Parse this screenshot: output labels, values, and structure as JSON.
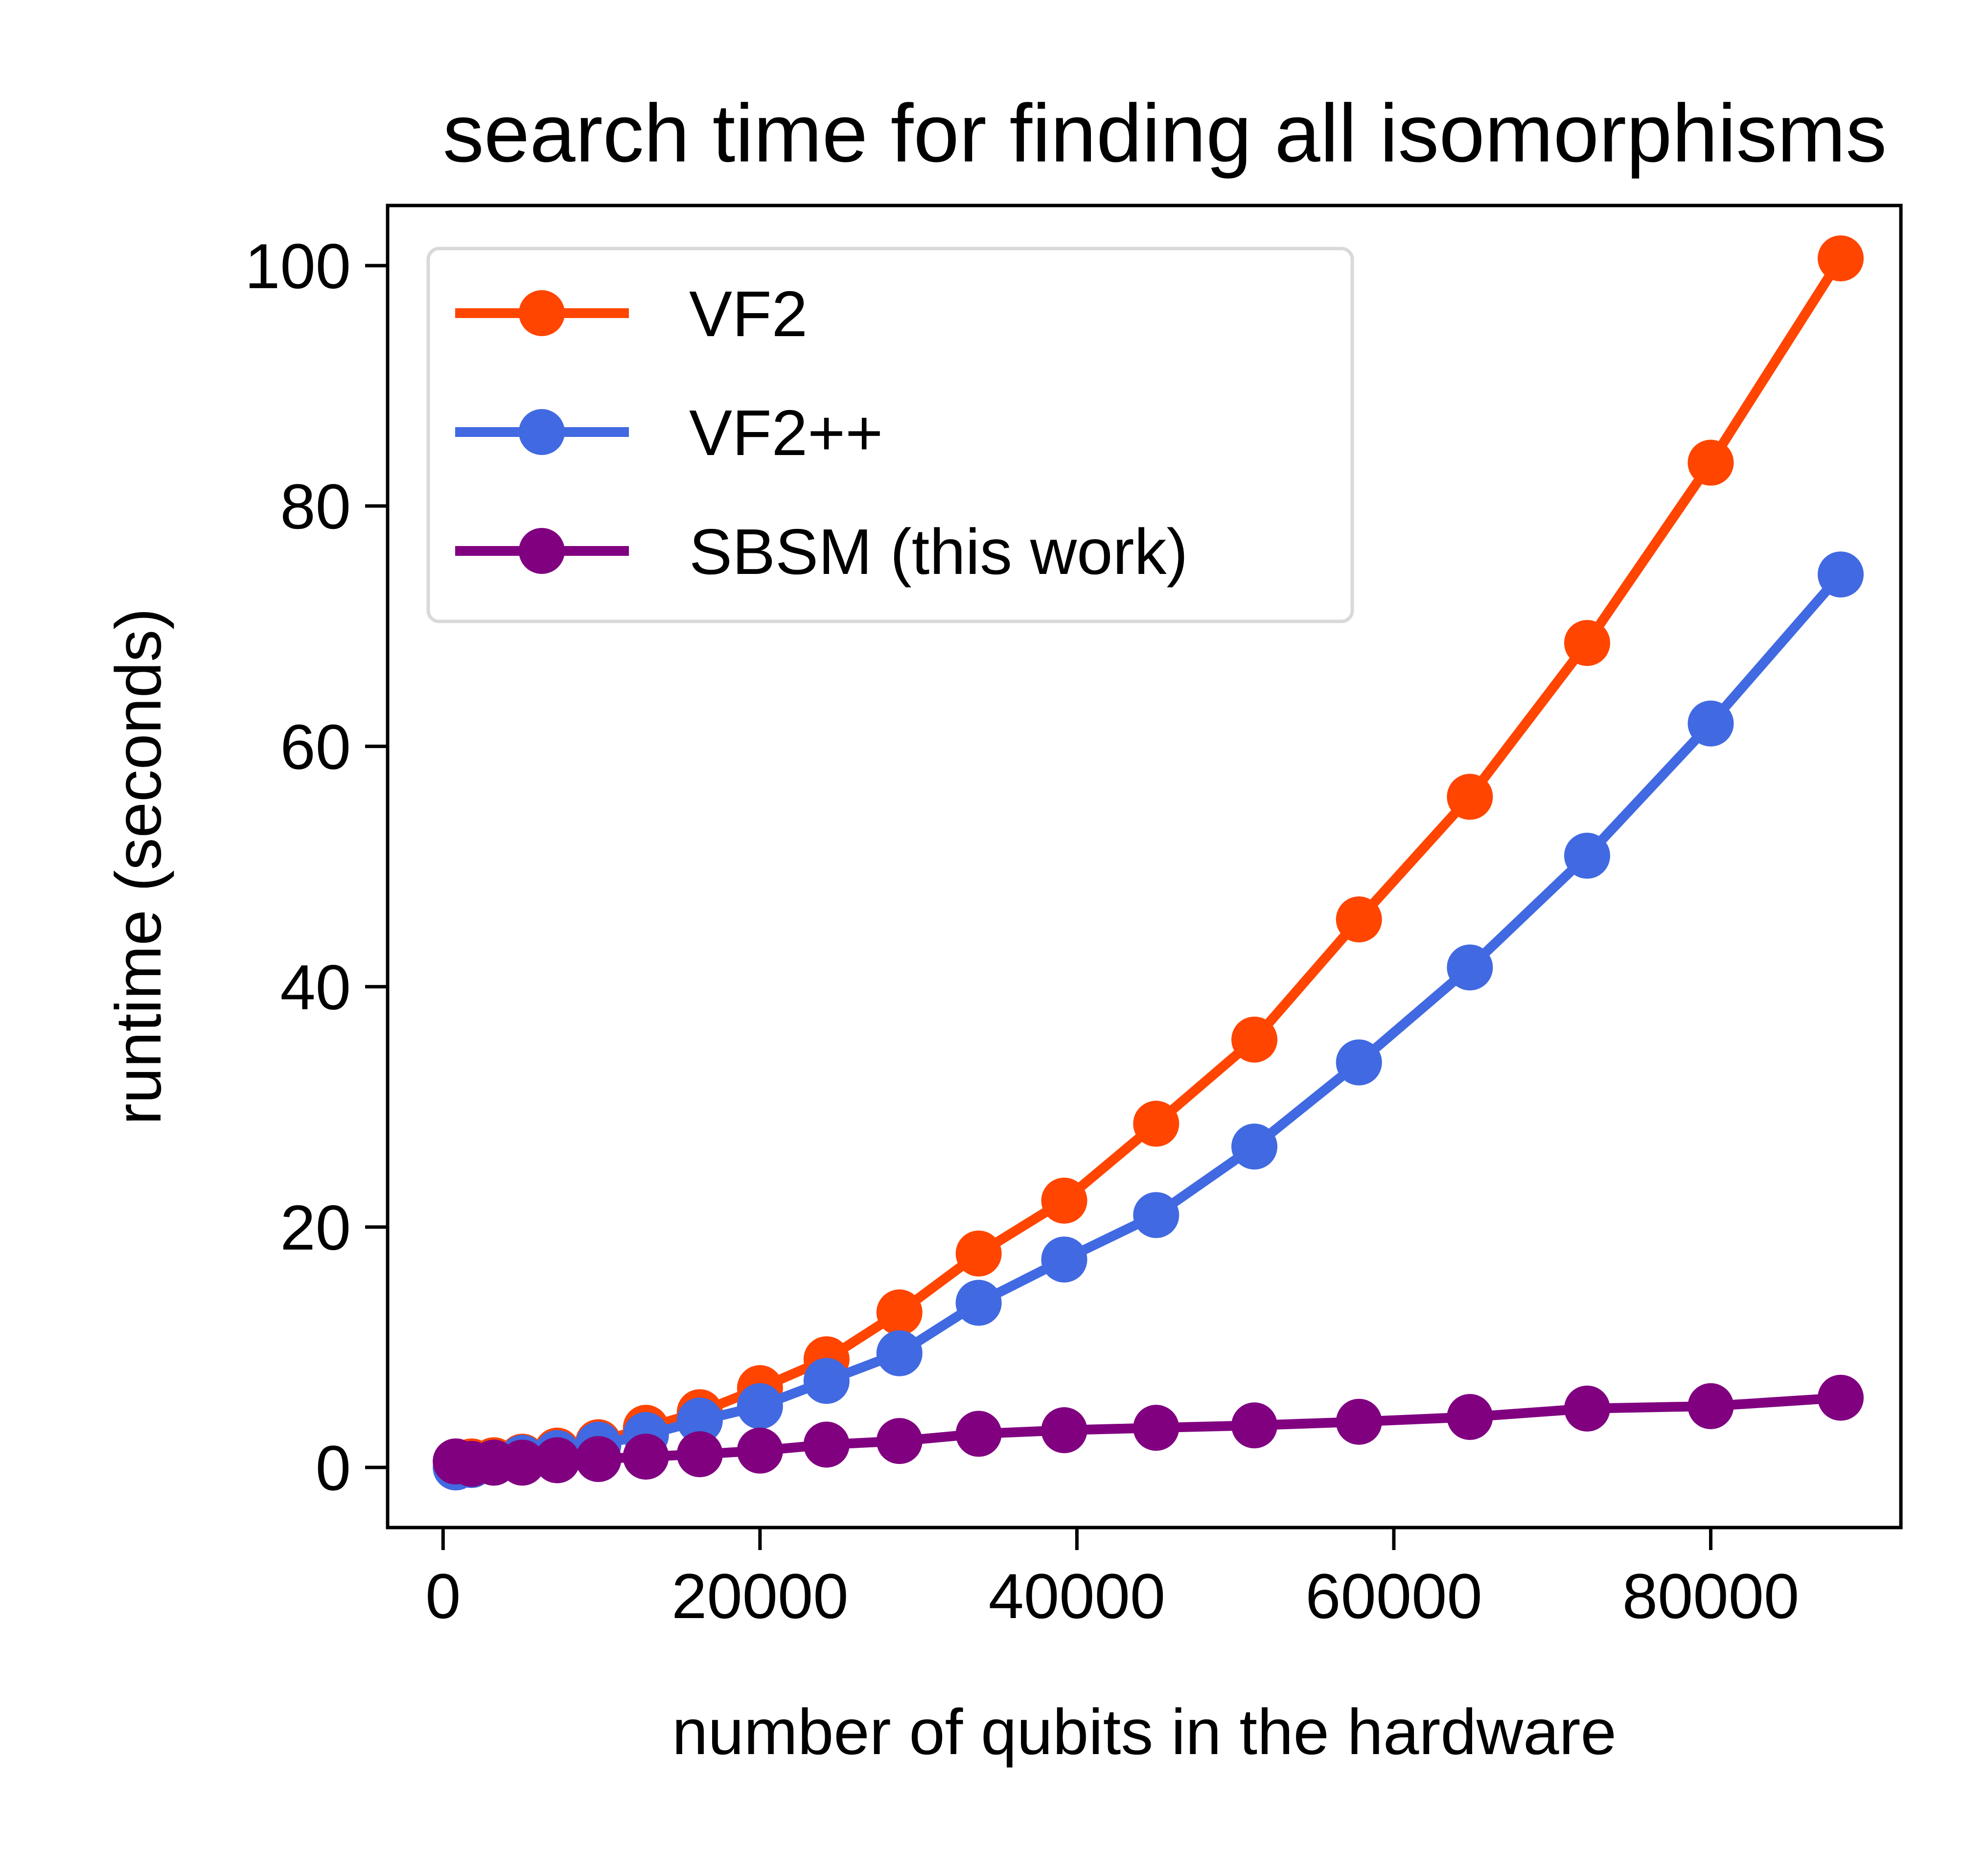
{
  "chart_data": {
    "type": "line",
    "title": "search time for finding all isomorphisms",
    "xlabel": "number of qubits in the hardware",
    "ylabel": "runtime (seconds)",
    "xlim": [
      -3500,
      92000
    ],
    "ylim": [
      -5,
      105
    ],
    "x_ticks": [
      0,
      20000,
      40000,
      60000,
      80000
    ],
    "y_ticks": [
      0,
      20,
      40,
      60,
      80,
      100
    ],
    "grid": false,
    "legend_position": "upper-left",
    "series": [
      {
        "name": "VF2",
        "color": "#ff4500",
        "x": [
          800,
          1800,
          3200,
          5000,
          7200,
          9800,
          12800,
          16200,
          20000,
          24200,
          28800,
          33800,
          39200,
          45000,
          51200,
          57800,
          64800,
          72200,
          80000,
          88200
        ],
        "y": [
          0.5,
          0.5,
          0.6,
          0.9,
          1.4,
          2.1,
          3.3,
          4.6,
          6.6,
          9.0,
          12.9,
          17.8,
          22.2,
          28.6,
          35.6,
          45.6,
          55.8,
          68.6,
          83.6,
          100.6
        ]
      },
      {
        "name": "VF2++",
        "color": "#4169e1",
        "x": [
          800,
          1800,
          3200,
          5000,
          7200,
          9800,
          12800,
          16200,
          20000,
          24200,
          28800,
          33800,
          39200,
          45000,
          51200,
          57800,
          64800,
          72200,
          80000,
          88200
        ],
        "y": [
          0.0,
          0.2,
          0.4,
          0.8,
          1.2,
          1.9,
          2.7,
          3.9,
          5.1,
          7.2,
          9.5,
          13.7,
          17.3,
          21.0,
          26.7,
          33.7,
          41.6,
          50.9,
          61.9,
          74.3
        ]
      },
      {
        "name": "SBSM (this work)",
        "color": "#800080",
        "x": [
          800,
          1800,
          3200,
          5000,
          7200,
          9800,
          12800,
          16200,
          20000,
          24200,
          28800,
          33800,
          39200,
          45000,
          51200,
          57800,
          64800,
          72200,
          80000,
          88200
        ],
        "y": [
          0.5,
          0.3,
          0.4,
          0.4,
          0.6,
          0.7,
          0.9,
          1.1,
          1.4,
          1.9,
          2.2,
          2.8,
          3.1,
          3.3,
          3.5,
          3.8,
          4.2,
          4.9,
          5.1,
          5.8
        ]
      }
    ]
  }
}
